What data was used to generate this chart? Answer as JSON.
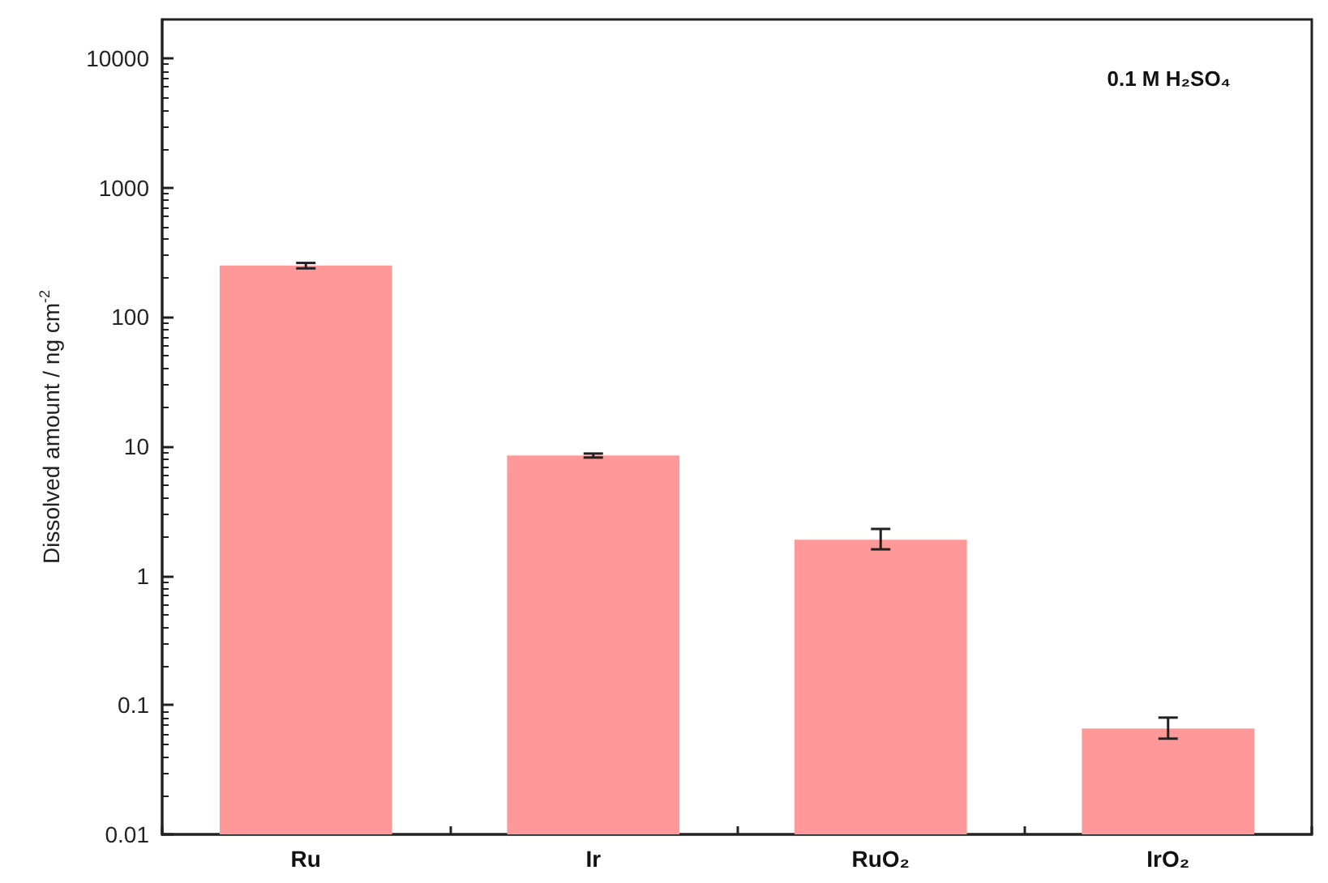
{
  "chart_data": {
    "type": "bar",
    "ylabel": "Dissolved amount / ng cm$^{-2}$",
    "categories": [
      "Ru",
      "Ir",
      "RuO₂",
      "IrO₂"
    ],
    "values": [
      250,
      8.5,
      1.9,
      0.066
    ],
    "errors": [
      12,
      0.3,
      [
        1.6,
        2.3
      ],
      [
        0.055,
        0.08
      ]
    ],
    "colors": [
      "#ff9999",
      "#ff9999",
      "#ff9999",
      "#ff9999"
    ],
    "log": "y",
    "ylim": [
      0.01,
      20000
    ],
    "yticks": [
      0.01,
      0.1,
      1,
      10,
      100,
      1000,
      10000
    ],
    "grid": false,
    "annotations": [
      "0.1 M H₂SO₄"
    ]
  }
}
